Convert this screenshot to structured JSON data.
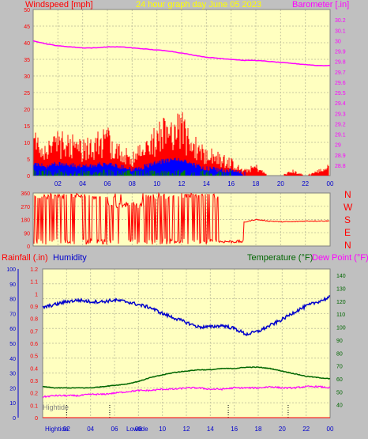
{
  "header": {
    "windspeed_label": "Windspeed [mph]",
    "title": "24 hour graph day   June 05 2023",
    "barometer_label": "Barometer [.in]"
  },
  "lower_header": {
    "rainfall_label": "Rainfall (.in)",
    "humidity_label": "Humidity",
    "temperature_label": "Temperature (°F)",
    "dewpoint_label": "Dew Point (°F)"
  },
  "direction_labels": [
    "N",
    "W",
    "S",
    "E",
    "N"
  ],
  "tide_labels": {
    "hightide_inner": "Hightide",
    "hightide_bottom": "Hightide",
    "lowtide_bottom": "Lowtide"
  },
  "colors": {
    "plot_bg": "#ffffc0",
    "frame_bg": "#c0c0c0",
    "wind": "#ff0000",
    "gust_blue": "#0000ff",
    "gust_green": "#008000",
    "barometer": "#ff00ff",
    "humidity": "#0000cc",
    "temperature": "#006600",
    "dewpoint": "#ff00ff",
    "title": "#ffff00"
  },
  "chart_data": [
    {
      "type": "line",
      "title": "24 hour graph day   June 05 2023",
      "x_ticks": [
        "02",
        "04",
        "06",
        "08",
        "10",
        "12",
        "14",
        "16",
        "18",
        "20",
        "22",
        "00"
      ],
      "left_axis": {
        "label": "Windspeed [mph]",
        "ylim": [
          0,
          50
        ],
        "ticks": [
          0,
          5,
          10,
          15,
          20,
          25,
          30,
          35,
          40,
          45,
          50
        ]
      },
      "right_axis": {
        "label": "Barometer [.in]",
        "ylim": [
          28.7,
          30.3
        ],
        "ticks": [
          "28.8",
          "28.9",
          "29",
          "29.1",
          "29.2",
          "29.3",
          "29.4",
          "29.5",
          "29.6",
          "29.7",
          "29.8",
          "29.9",
          "30",
          "30.1",
          "30.2"
        ]
      },
      "grid": true,
      "series": [
        {
          "name": "Barometer [.in]",
          "axis": "right",
          "x": [
            0,
            1,
            2,
            3,
            4,
            5,
            6,
            7,
            8,
            9,
            10,
            11,
            12,
            13,
            14,
            15,
            16,
            17,
            18,
            19,
            20,
            21,
            22,
            23,
            24
          ],
          "values": [
            30.0,
            29.97,
            29.95,
            29.94,
            29.93,
            29.93,
            29.94,
            29.94,
            29.93,
            29.92,
            29.91,
            29.9,
            29.88,
            29.86,
            29.84,
            29.83,
            29.82,
            29.81,
            29.81,
            29.8,
            29.79,
            29.78,
            29.77,
            29.76,
            29.76
          ]
        },
        {
          "name": "Windspeed [mph]",
          "axis": "left",
          "x": [
            0,
            1,
            2,
            3,
            4,
            5,
            6,
            7,
            8,
            9,
            10,
            11,
            12,
            13,
            14,
            15,
            16,
            17,
            18,
            19,
            20,
            21,
            22,
            23,
            24
          ],
          "values": [
            8,
            6,
            8,
            7,
            6,
            7,
            8,
            6,
            4,
            6,
            9,
            10,
            11,
            7,
            5,
            4,
            3,
            1,
            2,
            0,
            0,
            1,
            0,
            1,
            2
          ]
        }
      ]
    },
    {
      "type": "line",
      "left_axis": {
        "ylim": [
          0,
          360
        ],
        "ticks": [
          0,
          90,
          180,
          270,
          360
        ]
      },
      "series": [
        {
          "name": "Wind direction",
          "x": [
            0,
            1,
            2,
            3,
            4,
            5,
            6,
            7,
            8,
            9,
            10,
            11,
            12,
            13,
            14,
            15,
            16,
            17,
            18,
            19,
            20,
            21,
            22,
            23,
            24
          ],
          "values": [
            200,
            180,
            150,
            180,
            200,
            180,
            230,
            250,
            300,
            280,
            220,
            200,
            220,
            180,
            130,
            40,
            30,
            160,
            180,
            170,
            165,
            165,
            170,
            170,
            170
          ]
        }
      ]
    },
    {
      "type": "line",
      "x_ticks": [
        "02",
        "04",
        "06",
        "08",
        "10",
        "12",
        "14",
        "16",
        "18",
        "20",
        "22",
        "00"
      ],
      "humidity_axis": {
        "label": "Humidity",
        "ylim": [
          0,
          100
        ],
        "ticks": [
          0,
          10,
          20,
          30,
          40,
          50,
          60,
          70,
          80,
          90,
          100
        ]
      },
      "rain_axis": {
        "label": "Rainfall (.in)",
        "ylim": [
          0,
          1.2
        ],
        "ticks": [
          "0",
          "0.1",
          "0.2",
          "0.3",
          "0.4",
          "0.5",
          "0.6",
          "0.7",
          "0.8",
          "0.9",
          "1",
          "1.1",
          "1.2"
        ]
      },
      "temp_axis": {
        "label": "Temperature (°F)",
        "ylim": [
          30,
          145
        ],
        "ticks": [
          40,
          50,
          60,
          70,
          80,
          90,
          100,
          110,
          120,
          130,
          140
        ]
      },
      "grid": true,
      "series": [
        {
          "name": "Humidity",
          "axis": "humidity",
          "x": [
            0,
            1,
            2,
            3,
            4,
            5,
            6,
            7,
            8,
            9,
            10,
            11,
            12,
            13,
            14,
            15,
            16,
            17,
            18,
            19,
            20,
            21,
            22,
            23,
            24
          ],
          "values": [
            74,
            76,
            78,
            79,
            78,
            78,
            79,
            78,
            76,
            74,
            70,
            67,
            64,
            61,
            61,
            62,
            60,
            56,
            58,
            62,
            66,
            71,
            75,
            78,
            81
          ]
        },
        {
          "name": "Temperature (°F)",
          "axis": "temp",
          "x": [
            0,
            1,
            2,
            3,
            4,
            5,
            6,
            7,
            8,
            9,
            10,
            11,
            12,
            13,
            14,
            15,
            16,
            17,
            18,
            19,
            20,
            21,
            22,
            23,
            24
          ],
          "values": [
            54,
            53,
            53,
            53,
            53,
            54,
            55,
            56,
            58,
            61,
            63,
            65,
            66,
            67,
            67,
            68,
            68,
            69,
            69,
            68,
            66,
            64,
            62,
            61,
            60
          ]
        },
        {
          "name": "Dew Point (°F)",
          "axis": "temp",
          "x": [
            0,
            1,
            2,
            3,
            4,
            5,
            6,
            7,
            8,
            9,
            10,
            11,
            12,
            13,
            14,
            15,
            16,
            17,
            18,
            19,
            20,
            21,
            22,
            23,
            24
          ],
          "values": [
            46,
            47,
            47,
            47,
            48,
            48,
            49,
            50,
            51,
            51,
            52,
            52,
            53,
            53,
            52,
            52,
            53,
            53,
            53,
            54,
            53,
            53,
            54,
            54,
            53
          ]
        },
        {
          "name": "Rainfall (.in)",
          "axis": "rain",
          "x": [
            0,
            24
          ],
          "values": [
            0,
            0
          ]
        }
      ]
    }
  ]
}
